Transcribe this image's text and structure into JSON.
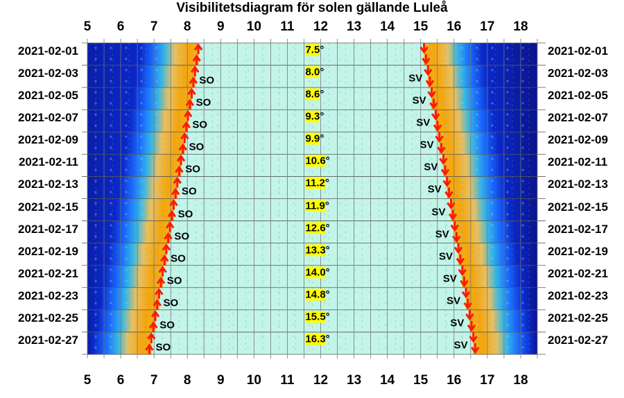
{
  "chart_data": {
    "type": "visibility",
    "title": "Visibilitetsdiagram för solen gällande Luleå",
    "x_ticks": [
      5,
      6,
      7,
      8,
      9,
      10,
      11,
      12,
      13,
      14,
      15,
      16,
      17,
      18
    ],
    "xlim": [
      5,
      18.5
    ],
    "dates": [
      "2021-02-01",
      "2021-02-03",
      "2021-02-05",
      "2021-02-07",
      "2021-02-09",
      "2021-02-11",
      "2021-02-13",
      "2021-02-15",
      "2021-02-17",
      "2021-02-19",
      "2021-02-21",
      "2021-02-23",
      "2021-02-25",
      "2021-02-27"
    ],
    "sunrise_hours": [
      8.33,
      8.23,
      8.13,
      8.02,
      7.92,
      7.81,
      7.7,
      7.59,
      7.48,
      7.37,
      7.26,
      7.15,
      7.04,
      6.92
    ],
    "sunset_hours": [
      15.1,
      15.22,
      15.33,
      15.45,
      15.56,
      15.68,
      15.79,
      15.91,
      16.02,
      16.13,
      16.25,
      16.36,
      16.47,
      16.58
    ],
    "noon_elevation": [
      "7.5",
      "8.0",
      "8.6",
      "9.3",
      "9.9",
      "10.6",
      "11.2",
      "11.9",
      "12.6",
      "13.3",
      "14.0",
      "14.8",
      "15.5",
      "16.3"
    ],
    "degree_symbol": "°",
    "rise_direction": "SO",
    "set_direction": "SV",
    "colors": {
      "daylight": "#c2f5e8",
      "twilight_gold": "#f5a50a",
      "night_blue": "#0a28c8",
      "arrow": "#ff1a00",
      "elevation_highlight": "#ffff00"
    }
  }
}
